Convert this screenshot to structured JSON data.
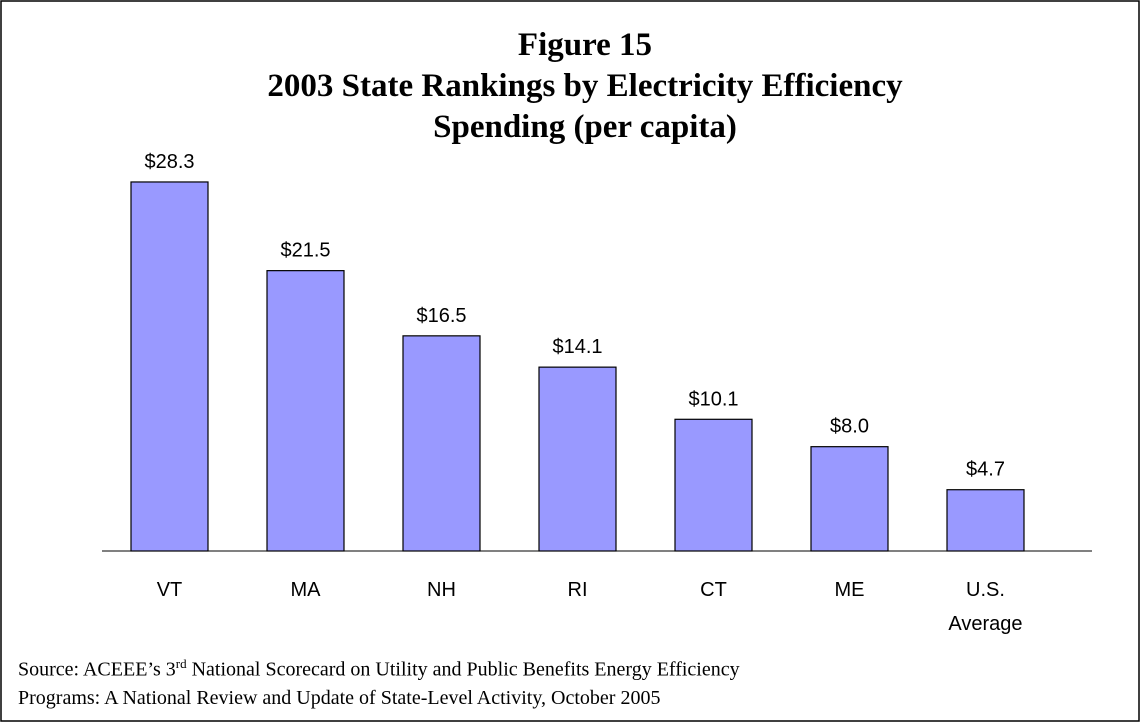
{
  "chart_data": {
    "type": "bar",
    "title": [
      "Figure 15",
      "2003 State Rankings by Electricity Efficiency",
      "Spending (per capita)"
    ],
    "categories": [
      "VT",
      "MA",
      "NH",
      "RI",
      "CT",
      "ME",
      "U.S. Average"
    ],
    "values": [
      28.3,
      21.5,
      16.5,
      14.1,
      10.1,
      8.0,
      4.7
    ],
    "value_labels": [
      "$28.3",
      "$21.5",
      "$16.5",
      "$14.1",
      "$10.1",
      "$8.0",
      "$4.7"
    ],
    "color": "#9999ff",
    "source": {
      "prefix": "Source:  ACEEE’s 3",
      "sup": "rd",
      "rest": " National Scorecard on Utility and Public Benefits Energy Efficiency Programs: A National Review and Update of State-Level Activity, October 2005"
    }
  }
}
